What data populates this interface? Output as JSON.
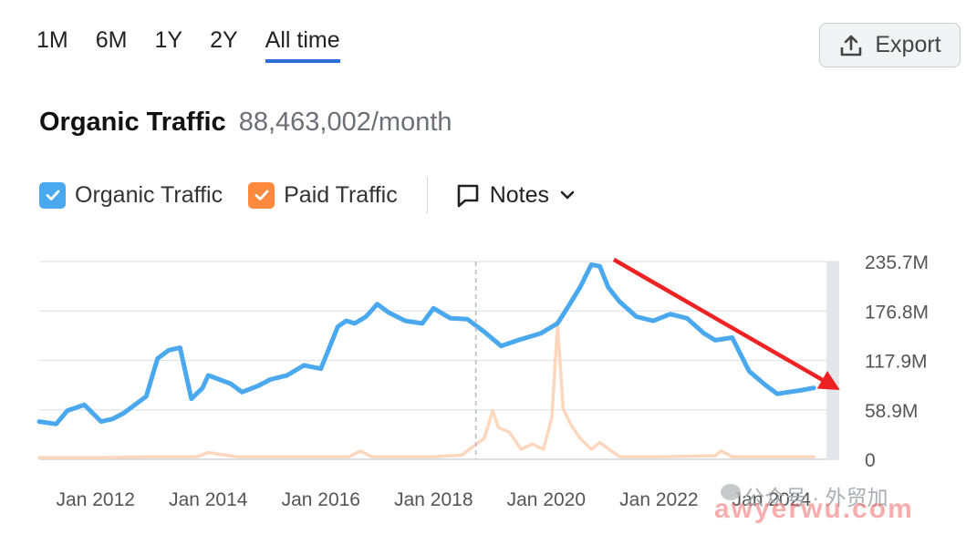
{
  "tabs": [
    {
      "label": "1M",
      "active": false
    },
    {
      "label": "6M",
      "active": false
    },
    {
      "label": "1Y",
      "active": false
    },
    {
      "label": "2Y",
      "active": false
    },
    {
      "label": "All time",
      "active": true
    }
  ],
  "export_label": "Export",
  "header": {
    "title": "Organic Traffic",
    "value": "88,463,002/month"
  },
  "legend": {
    "organic_label": "Organic Traffic",
    "paid_label": "Paid Traffic",
    "notes_label": "Notes"
  },
  "colors": {
    "organic": "#4aa8ee",
    "paid": "#fcd7bd",
    "accent": "#2b6fd6",
    "arrow": "#ee2222"
  },
  "watermark": {
    "line1": "公众号 · 外贸加",
    "line2": "awyerwu.com"
  },
  "chart_data": {
    "type": "line",
    "title": "Organic Traffic",
    "x_range": [
      2011.0,
      2025.2
    ],
    "ylim": [
      0,
      235.7
    ],
    "y_ticks": [
      "0",
      "58.9M",
      "117.9M",
      "176.8M",
      "235.7M"
    ],
    "x_ticks": [
      "Jan 2012",
      "Jan 2014",
      "Jan 2016",
      "Jan 2018",
      "Jan 2020",
      "Jan 2022",
      "Jan 2024"
    ],
    "grid": true,
    "legend_position": "top-left",
    "series": [
      {
        "name": "Organic Traffic",
        "x": [
          2011.0,
          2011.3,
          2011.5,
          2011.8,
          2012.1,
          2012.3,
          2012.5,
          2012.9,
          2013.1,
          2013.3,
          2013.5,
          2013.7,
          2013.9,
          2014.0,
          2014.2,
          2014.4,
          2014.6,
          2014.9,
          2015.1,
          2015.4,
          2015.7,
          2016.0,
          2016.3,
          2016.45,
          2016.6,
          2016.8,
          2017.0,
          2017.2,
          2017.5,
          2017.8,
          2018.0,
          2018.3,
          2018.6,
          2018.9,
          2019.2,
          2019.5,
          2019.9,
          2020.2,
          2020.4,
          2020.6,
          2020.8,
          2020.95,
          2021.1,
          2021.3,
          2021.6,
          2021.9,
          2022.2,
          2022.5,
          2022.8,
          2023.0,
          2023.3,
          2023.6,
          2023.9,
          2024.1,
          2024.3,
          2024.5,
          2024.75
        ],
        "values": [
          45,
          42,
          58,
          65,
          45,
          48,
          55,
          75,
          120,
          130,
          133,
          72,
          85,
          100,
          95,
          90,
          80,
          88,
          95,
          100,
          112,
          108,
          158,
          165,
          162,
          170,
          185,
          175,
          165,
          162,
          180,
          168,
          167,
          152,
          135,
          142,
          150,
          162,
          183,
          205,
          232,
          230,
          205,
          188,
          170,
          165,
          173,
          168,
          150,
          142,
          145,
          105,
          88,
          78,
          80,
          82,
          85
        ]
      },
      {
        "name": "Paid Traffic",
        "x": [
          2011.0,
          2012.0,
          2013.0,
          2013.8,
          2014.0,
          2014.5,
          2015.5,
          2016.5,
          2016.7,
          2016.9,
          2017.5,
          2018.0,
          2018.5,
          2018.9,
          2019.05,
          2019.15,
          2019.35,
          2019.55,
          2019.75,
          2019.95,
          2020.1,
          2020.2,
          2020.3,
          2020.45,
          2020.6,
          2020.8,
          2020.95,
          2021.3,
          2022.0,
          2022.8,
          2023.0,
          2023.1,
          2023.3,
          2024.0,
          2024.75
        ],
        "values": [
          2,
          2,
          3,
          3,
          8,
          3,
          3,
          3,
          10,
          3,
          3,
          3,
          5,
          25,
          58,
          38,
          32,
          12,
          18,
          12,
          50,
          160,
          60,
          40,
          25,
          12,
          20,
          3,
          3,
          4,
          4,
          10,
          3,
          3,
          3
        ]
      }
    ],
    "annotations": [
      {
        "type": "vertical-dashed-line",
        "x": 2018.75
      },
      {
        "type": "trend-arrow",
        "from": {
          "x": 2021.2,
          "y": 238
        },
        "to": {
          "x": 2025.15,
          "y": 85
        }
      }
    ]
  }
}
